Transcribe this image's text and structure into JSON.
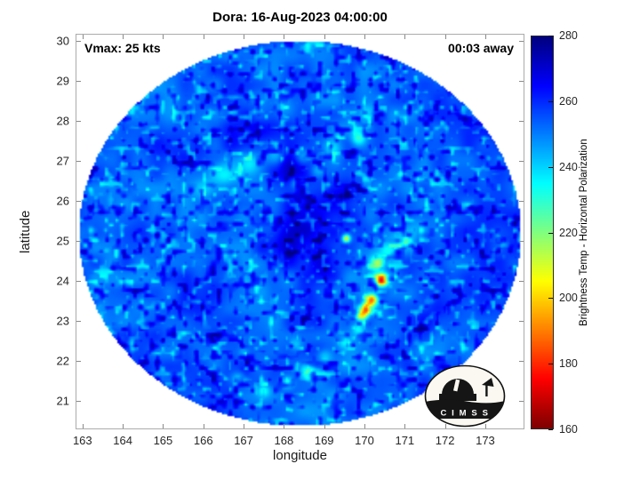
{
  "annotations": {
    "vmax": "Vmax: 25 kts",
    "time_away": "00:03 away"
  },
  "logo": {
    "text": "C I M S S"
  },
  "chart_data": {
    "type": "heatmap",
    "title": "Dora: 16-Aug-2023 04:00:00",
    "xlabel": "longitude",
    "ylabel": "latitude",
    "xlim": [
      162.85,
      173.95
    ],
    "ylim": [
      20.3,
      30.15
    ],
    "x_ticks": [
      163,
      164,
      165,
      166,
      167,
      168,
      169,
      170,
      171,
      172,
      173
    ],
    "y_ticks": [
      21,
      22,
      23,
      24,
      25,
      26,
      27,
      28,
      29,
      30
    ],
    "grid": false,
    "colorbar": {
      "label": "Brightness Temp - Horizontal Polarization",
      "min": 160,
      "max": 280,
      "ticks": [
        160,
        180,
        200,
        220,
        240,
        260,
        280
      ],
      "colormap": "jet_reversed",
      "position": "right"
    },
    "swath": {
      "shape": "circular",
      "center_lon": 168.4,
      "center_lat": 25.2,
      "base_temp_K": 254
    },
    "features_format": [
      "lon",
      "lat",
      "temp_K",
      "sigma_deg"
    ],
    "features": [
      [
        170.42,
        24.02,
        165,
        0.11
      ],
      [
        170.05,
        23.3,
        182,
        0.1
      ],
      [
        170.18,
        23.52,
        190,
        0.1
      ],
      [
        169.95,
        23.12,
        207,
        0.09
      ],
      [
        169.55,
        25.05,
        206,
        0.07
      ],
      [
        170.32,
        24.45,
        222,
        0.12
      ],
      [
        170.6,
        24.75,
        236,
        0.14
      ],
      [
        170.95,
        24.95,
        241,
        0.22
      ],
      [
        171.35,
        25.35,
        244,
        0.22
      ],
      [
        170.15,
        25.6,
        246,
        0.18
      ],
      [
        166.55,
        26.65,
        241,
        0.2
      ],
      [
        167.15,
        26.95,
        237,
        0.2
      ],
      [
        167.8,
        27.15,
        239,
        0.18
      ],
      [
        168.45,
        27.1,
        235,
        0.16
      ],
      [
        168.85,
        26.75,
        238,
        0.14
      ],
      [
        169.2,
        27.3,
        241,
        0.14
      ],
      [
        169.85,
        27.55,
        231,
        0.12
      ],
      [
        170.1,
        28.2,
        243,
        0.14
      ],
      [
        168.0,
        28.35,
        245,
        0.18
      ],
      [
        166.0,
        26.3,
        245,
        0.18
      ],
      [
        168.3,
        26.45,
        239,
        0.1
      ],
      [
        166.85,
        21.55,
        240,
        0.11
      ],
      [
        167.5,
        21.25,
        237,
        0.11
      ],
      [
        168.1,
        21.45,
        233,
        0.11
      ],
      [
        168.55,
        21.75,
        236,
        0.11
      ],
      [
        169.0,
        22.1,
        238,
        0.13
      ],
      [
        169.5,
        22.45,
        240,
        0.11
      ],
      [
        169.85,
        22.8,
        236,
        0.11
      ],
      [
        168.3,
        22.4,
        242,
        0.11
      ],
      [
        167.0,
        22.2,
        244,
        0.1
      ],
      [
        168.5,
        25.5,
        272,
        0.45
      ],
      [
        167.9,
        24.85,
        269,
        0.35
      ],
      [
        168.2,
        26.9,
        268,
        0.38
      ],
      [
        167.0,
        27.6,
        266,
        0.42
      ],
      [
        165.2,
        27.3,
        263,
        0.48
      ],
      [
        169.4,
        26.1,
        267,
        0.3
      ],
      [
        166.3,
        24.0,
        261,
        0.5
      ],
      [
        170.8,
        22.2,
        264,
        0.33
      ],
      [
        171.5,
        23.0,
        262,
        0.33
      ],
      [
        164.8,
        25.0,
        259,
        0.5
      ],
      [
        169.0,
        24.4,
        266,
        0.28
      ],
      [
        168.6,
        23.4,
        263,
        0.33
      ],
      [
        164.4,
        24.3,
        250,
        0.7
      ],
      [
        165.3,
        28.6,
        250,
        0.55
      ],
      [
        171.9,
        26.4,
        251,
        0.5
      ]
    ]
  }
}
